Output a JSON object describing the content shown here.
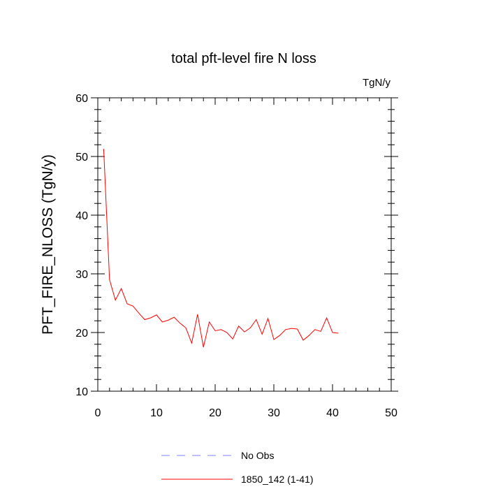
{
  "chart_data": {
    "type": "line",
    "title": "total pft-level fire N loss",
    "units_label": "TgN/y",
    "ylabel": "PFT_FIRE_NLOSS  (TgN/y)",
    "xlabel": "",
    "xlim": [
      0,
      50
    ],
    "ylim": [
      10,
      60
    ],
    "x_ticks": [
      0,
      10,
      20,
      30,
      40,
      50
    ],
    "y_ticks": [
      10,
      20,
      30,
      40,
      50,
      60
    ],
    "x_tick_labels": [
      "0",
      "10",
      "20",
      "30",
      "40",
      "50"
    ],
    "y_tick_labels": [
      "10",
      "20",
      "30",
      "40",
      "50",
      "60"
    ],
    "grid": false,
    "legend_position": "bottom",
    "series": [
      {
        "name": "1850_142 (1-41)",
        "color": "#ff0000",
        "dash": "solid",
        "x": [
          1,
          2,
          3,
          4,
          5,
          6,
          7,
          8,
          9,
          10,
          11,
          12,
          13,
          14,
          15,
          16,
          17,
          18,
          19,
          20,
          21,
          22,
          23,
          24,
          25,
          26,
          27,
          28,
          29,
          30,
          31,
          32,
          33,
          34,
          35,
          36,
          37,
          38,
          39,
          40,
          41
        ],
        "y": [
          51.3,
          29.0,
          25.5,
          27.5,
          24.9,
          24.5,
          23.3,
          22.2,
          22.5,
          23.0,
          21.8,
          22.1,
          22.6,
          21.6,
          20.8,
          18.2,
          23.1,
          17.5,
          21.8,
          20.3,
          20.5,
          20.0,
          18.9,
          21.1,
          20.1,
          20.8,
          22.2,
          19.7,
          22.4,
          18.8,
          19.5,
          20.5,
          20.7,
          20.6,
          18.7,
          19.5,
          20.5,
          20.2,
          22.5,
          20.0,
          19.9
        ]
      }
    ],
    "legend": [
      {
        "label": "No Obs",
        "color": "#7f7fff",
        "dash": "dashed"
      },
      {
        "label": "1850_142 (1-41)",
        "color": "#ff0000",
        "dash": "solid"
      }
    ]
  }
}
